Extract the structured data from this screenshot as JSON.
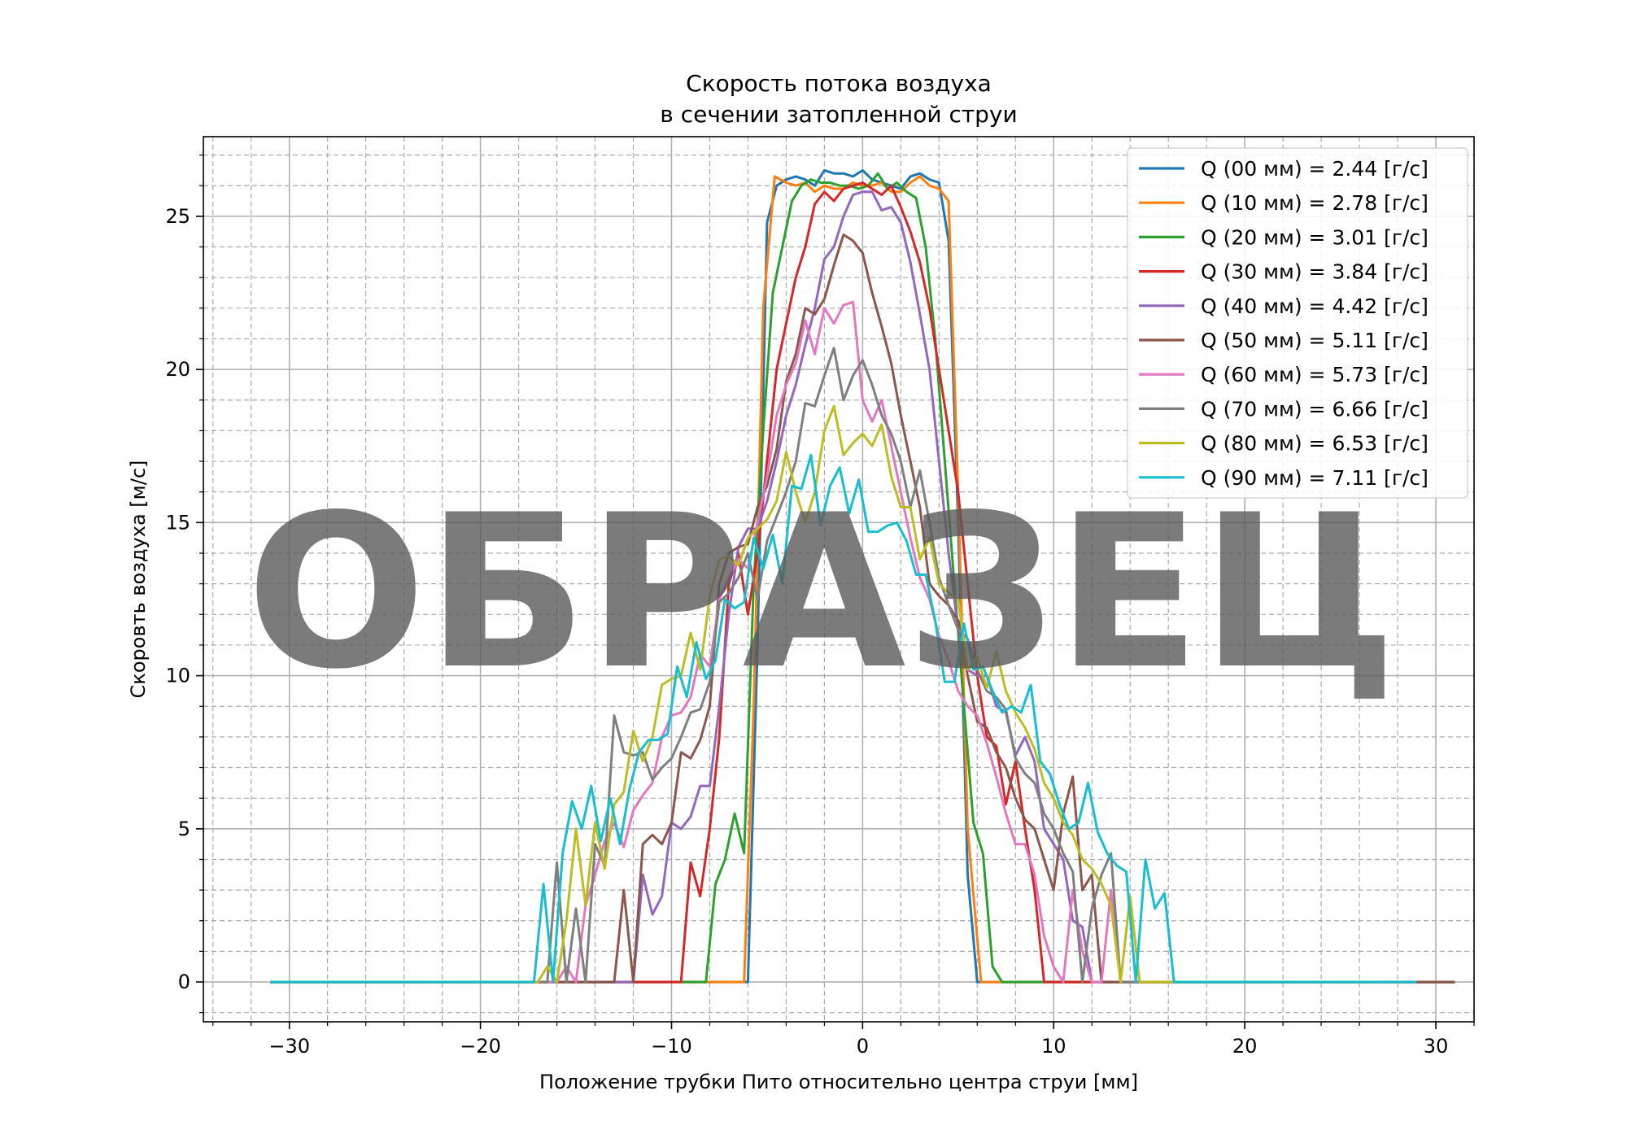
{
  "chart_data": {
    "type": "line",
    "title_line1": "Скорость потока воздуха",
    "title_line2": "в сечении затопленной струи",
    "xlabel": "Положение трубки Пито относительно центра струи [мм]",
    "ylabel": "Скоровть воздуха [м/с]",
    "xlim": [
      -34.5,
      32
    ],
    "ylim": [
      -1.3,
      27.6
    ],
    "xticks": [
      -30,
      -20,
      -10,
      0,
      10,
      20,
      30
    ],
    "xtick_labels": [
      "−30",
      "−20",
      "−10",
      "0",
      "10",
      "20",
      "30"
    ],
    "yticks": [
      0,
      5,
      10,
      15,
      20,
      25
    ],
    "ytick_labels": [
      "0",
      "5",
      "10",
      "15",
      "20",
      "25"
    ],
    "grid": true,
    "minor_grid": true,
    "legend_position": "top-right",
    "watermark": "ОБРАЗЕЦ",
    "series": [
      {
        "name": "Q (00 мм) = 2.44 [г/с]",
        "color": "#1f77b4",
        "x": [
          -31,
          -6,
          -5.5,
          -5,
          -4.5,
          -4,
          -3.5,
          -3,
          -2.5,
          -2,
          -1.5,
          -1,
          -0.5,
          0,
          0.5,
          1,
          1.5,
          2,
          2.5,
          3,
          3.5,
          4,
          4.5,
          5,
          5.5,
          6,
          31
        ],
        "y": [
          0,
          0,
          11,
          24.8,
          26,
          26.2,
          26.3,
          26.2,
          26,
          26.5,
          26.4,
          26.4,
          26.3,
          26.5,
          26.2,
          26.1,
          26,
          25.9,
          26.3,
          26.4,
          26.2,
          26.1,
          24.2,
          15,
          3.5,
          0,
          0
        ]
      },
      {
        "name": "Q (10 мм) = 2.78 [г/с]",
        "color": "#ff7f0e",
        "x": [
          -31,
          -6.2,
          -5.7,
          -5.2,
          -4.6,
          -4,
          -3.5,
          -3,
          -2.5,
          -2,
          -1.5,
          -1,
          -0.5,
          0,
          0.5,
          1,
          1.5,
          2,
          2.5,
          3,
          3.5,
          4,
          4.5,
          5,
          5.5,
          6.2,
          31
        ],
        "y": [
          0,
          0,
          9,
          22,
          26.3,
          26.1,
          26,
          26.1,
          25.8,
          26,
          25.9,
          25.9,
          26.1,
          26,
          26,
          26.1,
          25.8,
          25.8,
          26.1,
          26.3,
          26,
          25.9,
          25.5,
          16,
          5,
          0,
          0
        ]
      },
      {
        "name": "Q (20 мм) = 3.01 [г/с]",
        "color": "#2ca02c",
        "x": [
          -31,
          -8.2,
          -7.7,
          -7.2,
          -6.7,
          -6.2,
          -5.7,
          -5.2,
          -4.7,
          -4.2,
          -3.7,
          -3.2,
          -2.7,
          -2.2,
          -1.7,
          -1.2,
          -0.7,
          -0.2,
          0.3,
          0.8,
          1.3,
          1.8,
          2.3,
          2.8,
          3.3,
          3.8,
          4.3,
          4.8,
          5.3,
          5.8,
          6.3,
          6.8,
          7.3,
          31
        ],
        "y": [
          0,
          0,
          3.2,
          4,
          5.5,
          4.2,
          13,
          18,
          22.5,
          24,
          25.5,
          26,
          26.2,
          26.1,
          26.1,
          26,
          26,
          25.9,
          26,
          26.4,
          25.9,
          26.1,
          25.8,
          25.6,
          24,
          21,
          17,
          13,
          9,
          5.2,
          4.2,
          0.5,
          0,
          0
        ]
      },
      {
        "name": "Q (30 мм) = 3.84 [г/с]",
        "color": "#d62728",
        "x": [
          -31,
          -9.5,
          -9,
          -8.5,
          -8,
          -7.5,
          -7,
          -6.5,
          -6,
          -5.5,
          -5,
          -4.5,
          -4,
          -3.5,
          -3,
          -2.5,
          -2,
          -1.5,
          -1,
          -0.5,
          0,
          0.5,
          1,
          1.5,
          2,
          2.5,
          3,
          3.5,
          4,
          4.5,
          5,
          5.5,
          6,
          6.5,
          7,
          7.5,
          8,
          8.5,
          9,
          9.5,
          31
        ],
        "y": [
          0,
          0,
          3.9,
          2.8,
          5,
          8,
          13,
          14,
          12,
          14,
          17,
          20,
          21.5,
          23,
          24,
          25.4,
          25.8,
          25.5,
          25.9,
          26,
          26.1,
          25.9,
          25.7,
          26,
          25.3,
          24.5,
          23.5,
          22,
          20,
          18,
          16,
          13,
          10,
          8,
          7.7,
          5.8,
          7.2,
          5,
          3,
          0,
          0
        ]
      },
      {
        "name": "Q (40 мм) = 4.42 [г/с]",
        "color": "#9467bd",
        "x": [
          -31,
          -12,
          -11.5,
          -11,
          -10.5,
          -10,
          -9.5,
          -9,
          -8.5,
          -8,
          -7.5,
          -7,
          -6.5,
          -6,
          -5.5,
          -5,
          -4.5,
          -4,
          -3.5,
          -3,
          -2.5,
          -2,
          -1.5,
          -1,
          -0.5,
          0,
          0.5,
          1,
          1.5,
          2,
          2.5,
          3,
          3.5,
          4,
          4.5,
          5,
          5.5,
          6,
          6.5,
          7,
          7.5,
          8,
          8.5,
          9,
          9.5,
          10,
          10.5,
          11,
          11.5,
          12,
          31
        ],
        "y": [
          0,
          0,
          3.5,
          2.2,
          2.8,
          5.2,
          5,
          5.4,
          6.4,
          6.4,
          9,
          12,
          14.2,
          14.8,
          14.8,
          15.7,
          17,
          18.5,
          19.5,
          20.8,
          22,
          23.6,
          24,
          25,
          25.7,
          25.8,
          25.8,
          25.2,
          25.3,
          24.8,
          23.5,
          21.8,
          20,
          17,
          14,
          11.5,
          10.2,
          10,
          10,
          9,
          8.8,
          7.4,
          8,
          7.2,
          5,
          4.5,
          4,
          2,
          1.8,
          0,
          0
        ]
      },
      {
        "name": "Q (50 мм) = 5.11 [г/с]",
        "color": "#8c564b",
        "x": [
          -31,
          -13,
          -12.5,
          -12,
          -11.5,
          -11,
          -10.5,
          -10,
          -9.5,
          -9,
          -8.5,
          -8,
          -7.5,
          -7,
          -6.5,
          -6,
          -5.5,
          -5,
          -4.5,
          -4,
          -3.5,
          -3,
          -2.5,
          -2,
          -1.5,
          -1,
          -0.5,
          0,
          0.5,
          1,
          1.5,
          2,
          2.5,
          3,
          3.5,
          4,
          4.5,
          5,
          5.5,
          6,
          6.5,
          7,
          7.5,
          8,
          8.5,
          9,
          9.5,
          10,
          10.5,
          11,
          11.5,
          12,
          12.5,
          13,
          31
        ],
        "y": [
          0,
          0,
          3,
          0,
          4.5,
          4.8,
          4.5,
          5.2,
          7.5,
          7.3,
          7.9,
          9,
          13,
          14,
          14.2,
          14.3,
          15.5,
          16.2,
          17.4,
          19.6,
          20.5,
          22,
          21.8,
          22.3,
          23.4,
          24.4,
          24.2,
          23.8,
          22.5,
          21.4,
          20.2,
          18.5,
          17,
          15.5,
          13,
          12.6,
          12.3,
          11.8,
          10,
          8.5,
          8.3,
          7.5,
          7,
          6,
          5.3,
          5,
          4,
          3,
          5.5,
          6.7,
          3,
          3.5,
          0,
          0,
          0
        ]
      },
      {
        "name": "Q (60 мм) = 5.73 [г/с]",
        "color": "#e377c2",
        "x": [
          -31,
          -16,
          -15.5,
          -15,
          -14.5,
          -14,
          -13.5,
          -13,
          -12.5,
          -12,
          -11.5,
          -11,
          -10.5,
          -10,
          -9.5,
          -9,
          -8.5,
          -8,
          -7.5,
          -7,
          -6.5,
          -6,
          -5.5,
          -5,
          -4.5,
          -4,
          -3.5,
          -3,
          -2.5,
          -2,
          -1.5,
          -1,
          -0.5,
          0,
          0.5,
          1,
          1.5,
          2,
          2.5,
          3,
          3.5,
          4,
          4.5,
          5,
          5.5,
          6,
          6.5,
          7,
          7.5,
          8,
          8.5,
          9,
          9.5,
          10,
          10.5,
          11,
          11.5,
          12,
          12.5,
          13,
          13.5,
          14,
          29
        ],
        "y": [
          0,
          0,
          0.5,
          0,
          2.5,
          3.5,
          4.6,
          5.2,
          4.4,
          5.6,
          6.1,
          6.5,
          8,
          8.7,
          8.8,
          9.3,
          10.7,
          10.3,
          12.5,
          13.2,
          13.8,
          13.5,
          15,
          16.5,
          18.5,
          19.5,
          20.2,
          21.6,
          20.5,
          22,
          21.5,
          22.1,
          22.2,
          19,
          18.3,
          19,
          17.5,
          16,
          14.5,
          13.2,
          12.5,
          11.3,
          10.5,
          9.5,
          9,
          8.7,
          7.8,
          6.7,
          5.5,
          4.5,
          4.5,
          3.5,
          1.5,
          0.5,
          0,
          3,
          1,
          0,
          0,
          3,
          0,
          0,
          0
        ]
      },
      {
        "name": "Q (70 мм) = 6.66 [г/с]",
        "color": "#7f7f7f",
        "x": [
          -31,
          -16.5,
          -16,
          -15.5,
          -15,
          -14.5,
          -14,
          -13.5,
          -13,
          -12.5,
          -12,
          -11.5,
          -11,
          -10.5,
          -10,
          -9.5,
          -9,
          -8.5,
          -8,
          -7.5,
          -7,
          -6.5,
          -6,
          -5.5,
          -5,
          -4.5,
          -4,
          -3.5,
          -3,
          -2.5,
          -2,
          -1.5,
          -1,
          -0.5,
          0,
          0.5,
          1,
          1.5,
          2,
          2.5,
          3,
          3.5,
          4,
          4.5,
          5,
          5.5,
          6,
          6.5,
          7,
          7.5,
          8,
          8.5,
          9,
          9.5,
          10,
          10.5,
          11,
          11.5,
          12,
          12.5,
          13,
          13.5,
          14,
          14.5,
          27
        ],
        "y": [
          0,
          0,
          3.9,
          0,
          2.4,
          0,
          4.5,
          3.8,
          8.7,
          7.5,
          7.4,
          7.5,
          6.6,
          7,
          7.3,
          8,
          8.8,
          8.9,
          9.8,
          12.4,
          12.7,
          13.2,
          14,
          12.5,
          14.4,
          15.2,
          16,
          17,
          18.9,
          18.8,
          19.8,
          20.7,
          19,
          19.8,
          20.3,
          19.5,
          18.5,
          17.9,
          17,
          15.5,
          16.7,
          15,
          13.2,
          12.3,
          11.5,
          11.2,
          10.2,
          9.5,
          9.3,
          8.9,
          7.3,
          6.8,
          6.5,
          5.5,
          5,
          4.2,
          3.6,
          0,
          2.4,
          3.5,
          4.2,
          0,
          0,
          0,
          0
        ]
      },
      {
        "name": "Q (80 мм) = 6.53 [г/с]",
        "color": "#bcbd22",
        "x": [
          -31,
          -17,
          -16.5,
          -16,
          -15.5,
          -15,
          -14.5,
          -14,
          -13.5,
          -13,
          -12.5,
          -12,
          -11.5,
          -11,
          -10.5,
          -10,
          -9.5,
          -9,
          -8.5,
          -8,
          -7.5,
          -7,
          -6.5,
          -6,
          -5.5,
          -5,
          -4.5,
          -4,
          -3.5,
          -3,
          -2.5,
          -2,
          -1.5,
          -1,
          -0.5,
          0,
          0.5,
          1,
          1.5,
          2,
          2.5,
          3,
          3.5,
          4,
          4.5,
          5,
          5.5,
          6,
          6.5,
          7,
          7.5,
          8,
          8.5,
          9,
          9.5,
          10,
          10.5,
          11,
          11.5,
          12,
          12.5,
          13,
          13.5,
          14,
          14.5,
          15,
          27
        ],
        "y": [
          0,
          0,
          0.5,
          0,
          2,
          5,
          2.5,
          5.2,
          3.7,
          5.8,
          6.2,
          8.2,
          7.2,
          8,
          9.7,
          9.9,
          10,
          11.4,
          10.2,
          12.6,
          13.8,
          13.9,
          13.6,
          14.5,
          14.8,
          15.1,
          15.7,
          17.3,
          16,
          15,
          16,
          18,
          18.8,
          17.2,
          17.6,
          17.9,
          17.5,
          18.2,
          16.5,
          15.5,
          15.5,
          13.8,
          14.5,
          13,
          12.7,
          12.5,
          10.2,
          10.6,
          9.6,
          10.8,
          9.5,
          8.8,
          8.3,
          7.6,
          6.5,
          6,
          5.2,
          4.8,
          4,
          3.7,
          3.2,
          2.5,
          0,
          2.8,
          0,
          0,
          0
        ]
      },
      {
        "name": "Q (90 мм) = 7.11 [г/с]",
        "color": "#17becf",
        "x": [
          -31,
          -17.2,
          -16.7,
          -16.2,
          -15.7,
          -15.2,
          -14.7,
          -14.2,
          -13.7,
          -13.2,
          -12.7,
          -12.2,
          -11.7,
          -11.2,
          -10.7,
          -10.2,
          -9.7,
          -9.2,
          -8.7,
          -8.2,
          -7.7,
          -7.2,
          -6.7,
          -6.2,
          -5.7,
          -5.2,
          -4.7,
          -4.2,
          -3.7,
          -3.2,
          -2.7,
          -2.2,
          -1.7,
          -1.2,
          -0.7,
          -0.2,
          0.3,
          0.8,
          1.3,
          1.8,
          2.3,
          2.8,
          3.3,
          3.8,
          4.3,
          4.8,
          5.3,
          5.8,
          6.3,
          6.8,
          7.3,
          7.8,
          8.3,
          8.8,
          9.3,
          9.8,
          10.3,
          10.8,
          11.3,
          11.8,
          12.3,
          12.8,
          13.3,
          13.8,
          14.3,
          14.8,
          15.3,
          15.8,
          16.3,
          29
        ],
        "y": [
          0,
          0,
          3.2,
          0,
          4.2,
          5.9,
          5,
          6.4,
          4.6,
          6,
          4.5,
          6.3,
          7.5,
          7.9,
          7.9,
          8.1,
          10.3,
          9.3,
          11.1,
          9.9,
          10.5,
          12.5,
          12.2,
          12.4,
          14.5,
          13.5,
          14.6,
          13,
          16.2,
          16.1,
          17.2,
          14.9,
          16.2,
          16.8,
          15.3,
          16.4,
          14.7,
          14.7,
          14.9,
          15,
          14.4,
          13.3,
          13.3,
          11.8,
          9.8,
          9.8,
          11.7,
          10.2,
          10.3,
          9.5,
          8.8,
          9,
          8.8,
          9.7,
          7.2,
          6.8,
          5.8,
          5,
          5.2,
          6.5,
          4.9,
          4.2,
          3.8,
          3.6,
          0,
          4,
          2.4,
          2.9,
          0,
          0
        ]
      }
    ]
  }
}
